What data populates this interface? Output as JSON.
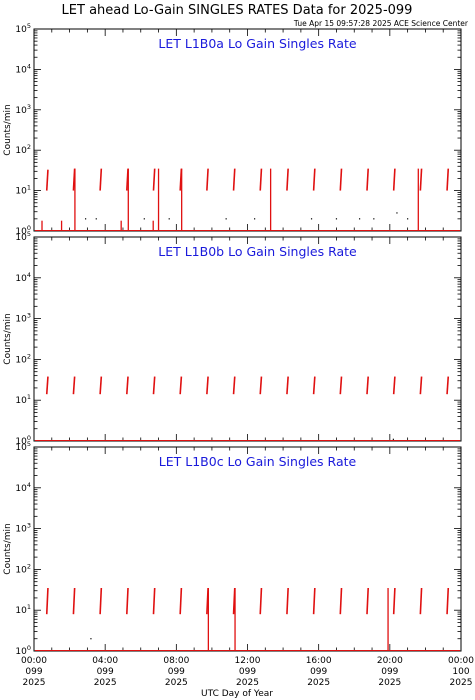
{
  "page": {
    "title": "LET ahead Lo-Gain SINGLES RATES Data for 2025-099",
    "timestamp": "Tue Apr 15 09:57:28 2025 ACE Science Center",
    "xlabel": "UTC Day of Year",
    "line_color": "#e01010",
    "panel_title_color": "#1a1adb"
  },
  "chart_data": [
    {
      "type": "line",
      "title": "LET L1B0a Lo Gain Singles Rate",
      "ylabel": "Counts/min",
      "yscale": "log",
      "ylim": [
        1,
        100000
      ],
      "yticks": [
        {
          "base": "10",
          "exp": "0"
        },
        {
          "base": "10",
          "exp": "1"
        },
        {
          "base": "10",
          "exp": "2"
        },
        {
          "base": "10",
          "exp": "3"
        },
        {
          "base": "10",
          "exp": "4"
        },
        {
          "base": "10",
          "exp": "5"
        }
      ],
      "xlim_hours": [
        0,
        24
      ],
      "spikes": [
        {
          "hour": 0.75,
          "low": 10,
          "high": 33
        },
        {
          "hour": 2.25,
          "low": 10,
          "high": 35
        },
        {
          "hour": 3.75,
          "low": 10,
          "high": 35
        },
        {
          "hour": 5.25,
          "low": 10,
          "high": 35
        },
        {
          "hour": 6.75,
          "low": 10,
          "high": 35
        },
        {
          "hour": 8.25,
          "low": 10,
          "high": 35
        },
        {
          "hour": 9.75,
          "low": 10,
          "high": 35
        },
        {
          "hour": 11.25,
          "low": 10,
          "high": 35
        },
        {
          "hour": 12.75,
          "low": 10,
          "high": 35
        },
        {
          "hour": 14.25,
          "low": 10,
          "high": 35
        },
        {
          "hour": 15.75,
          "low": 10,
          "high": 35
        },
        {
          "hour": 17.25,
          "low": 10,
          "high": 35
        },
        {
          "hour": 18.75,
          "low": 10,
          "high": 35
        },
        {
          "hour": 20.25,
          "low": 10,
          "high": 35
        },
        {
          "hour": 21.75,
          "low": 10,
          "high": 35
        },
        {
          "hour": 23.25,
          "low": 10,
          "high": 35
        }
      ],
      "drops": [
        {
          "hour": 0.45,
          "low": 1,
          "high": 1.8
        },
        {
          "hour": 1.55,
          "low": 1,
          "high": 1.8
        },
        {
          "hour": 2.3,
          "low": 1,
          "high": 35
        },
        {
          "hour": 4.9,
          "low": 1,
          "high": 1.8
        },
        {
          "hour": 5.3,
          "low": 1,
          "high": 35
        },
        {
          "hour": 6.7,
          "low": 1,
          "high": 1.8
        },
        {
          "hour": 7.0,
          "low": 1,
          "high": 35
        },
        {
          "hour": 8.3,
          "low": 1,
          "high": 35
        },
        {
          "hour": 13.3,
          "low": 1,
          "high": 35
        },
        {
          "hour": 21.6,
          "low": 1,
          "high": 35
        }
      ],
      "dots": [
        {
          "hour": 2.9,
          "value": 2
        },
        {
          "hour": 3.5,
          "value": 2
        },
        {
          "hour": 6.2,
          "value": 2
        },
        {
          "hour": 7.6,
          "value": 2
        },
        {
          "hour": 10.8,
          "value": 2
        },
        {
          "hour": 12.4,
          "value": 2
        },
        {
          "hour": 15.6,
          "value": 2
        },
        {
          "hour": 17.0,
          "value": 2
        },
        {
          "hour": 18.3,
          "value": 2
        },
        {
          "hour": 19.1,
          "value": 2
        },
        {
          "hour": 20.4,
          "value": 2.8
        },
        {
          "hour": 21.0,
          "value": 2
        }
      ],
      "baseline": 1
    },
    {
      "type": "line",
      "title": "LET L1B0b Lo Gain Singles Rate",
      "ylabel": "Counts/min",
      "yscale": "log",
      "ylim": [
        1,
        100000
      ],
      "yticks": [
        {
          "base": "10",
          "exp": "0"
        },
        {
          "base": "10",
          "exp": "1"
        },
        {
          "base": "10",
          "exp": "2"
        },
        {
          "base": "10",
          "exp": "3"
        },
        {
          "base": "10",
          "exp": "4"
        },
        {
          "base": "10",
          "exp": "5"
        }
      ],
      "xlim_hours": [
        0,
        24
      ],
      "spikes": [
        {
          "hour": 0.75,
          "low": 14,
          "high": 38
        },
        {
          "hour": 2.25,
          "low": 14,
          "high": 38
        },
        {
          "hour": 3.75,
          "low": 14,
          "high": 38
        },
        {
          "hour": 5.25,
          "low": 14,
          "high": 38
        },
        {
          "hour": 6.75,
          "low": 14,
          "high": 38
        },
        {
          "hour": 8.25,
          "low": 14,
          "high": 38
        },
        {
          "hour": 9.75,
          "low": 14,
          "high": 38
        },
        {
          "hour": 11.25,
          "low": 14,
          "high": 38
        },
        {
          "hour": 12.75,
          "low": 14,
          "high": 38
        },
        {
          "hour": 14.25,
          "low": 14,
          "high": 38
        },
        {
          "hour": 15.75,
          "low": 14,
          "high": 38
        },
        {
          "hour": 17.25,
          "low": 14,
          "high": 38
        },
        {
          "hour": 18.75,
          "low": 14,
          "high": 38
        },
        {
          "hour": 20.25,
          "low": 14,
          "high": 38
        },
        {
          "hour": 21.75,
          "low": 14,
          "high": 38
        },
        {
          "hour": 23.25,
          "low": 14,
          "high": 38
        }
      ],
      "drops": [],
      "dots": [
        {
          "hour": 20.2,
          "value": 1.1
        }
      ],
      "baseline": 1
    },
    {
      "type": "line",
      "title": "LET L1B0c Lo Gain Singles Rate",
      "ylabel": "Counts/min",
      "yscale": "log",
      "ylim": [
        1,
        100000
      ],
      "yticks": [
        {
          "base": "10",
          "exp": "0"
        },
        {
          "base": "10",
          "exp": "1"
        },
        {
          "base": "10",
          "exp": "2"
        },
        {
          "base": "10",
          "exp": "3"
        },
        {
          "base": "10",
          "exp": "4"
        },
        {
          "base": "10",
          "exp": "5"
        }
      ],
      "xlim_hours": [
        0,
        24
      ],
      "spikes": [
        {
          "hour": 0.75,
          "low": 8,
          "high": 35
        },
        {
          "hour": 2.25,
          "low": 8,
          "high": 35
        },
        {
          "hour": 3.75,
          "low": 8,
          "high": 35
        },
        {
          "hour": 5.25,
          "low": 8,
          "high": 35
        },
        {
          "hour": 6.75,
          "low": 8,
          "high": 35
        },
        {
          "hour": 8.25,
          "low": 8,
          "high": 35
        },
        {
          "hour": 9.75,
          "low": 8,
          "high": 35
        },
        {
          "hour": 11.25,
          "low": 8,
          "high": 35
        },
        {
          "hour": 12.75,
          "low": 8,
          "high": 35
        },
        {
          "hour": 14.25,
          "low": 8,
          "high": 35
        },
        {
          "hour": 15.75,
          "low": 8,
          "high": 35
        },
        {
          "hour": 17.25,
          "low": 8,
          "high": 35
        },
        {
          "hour": 18.75,
          "low": 8,
          "high": 35
        },
        {
          "hour": 20.25,
          "low": 8,
          "high": 35
        },
        {
          "hour": 21.75,
          "low": 8,
          "high": 35
        },
        {
          "hour": 23.25,
          "low": 8,
          "high": 35
        }
      ],
      "drops": [
        {
          "hour": 9.8,
          "low": 1,
          "high": 35
        },
        {
          "hour": 11.3,
          "low": 1,
          "high": 35
        },
        {
          "hour": 19.9,
          "low": 1,
          "high": 35
        }
      ],
      "dots": [
        {
          "hour": 3.2,
          "value": 2
        }
      ],
      "baseline": 1
    }
  ],
  "xticks": [
    {
      "hour": 0,
      "time": "00:00",
      "doy": "099",
      "year": "2025"
    },
    {
      "hour": 4,
      "time": "04:00",
      "doy": "099",
      "year": "2025"
    },
    {
      "hour": 8,
      "time": "08:00",
      "doy": "099",
      "year": "2025"
    },
    {
      "hour": 12,
      "time": "12:00",
      "doy": "099",
      "year": "2025"
    },
    {
      "hour": 16,
      "time": "16:00",
      "doy": "099",
      "year": "2025"
    },
    {
      "hour": 20,
      "time": "20:00",
      "doy": "099",
      "year": "2025"
    },
    {
      "hour": 24,
      "time": "00:00",
      "doy": "100",
      "year": "2025"
    }
  ]
}
